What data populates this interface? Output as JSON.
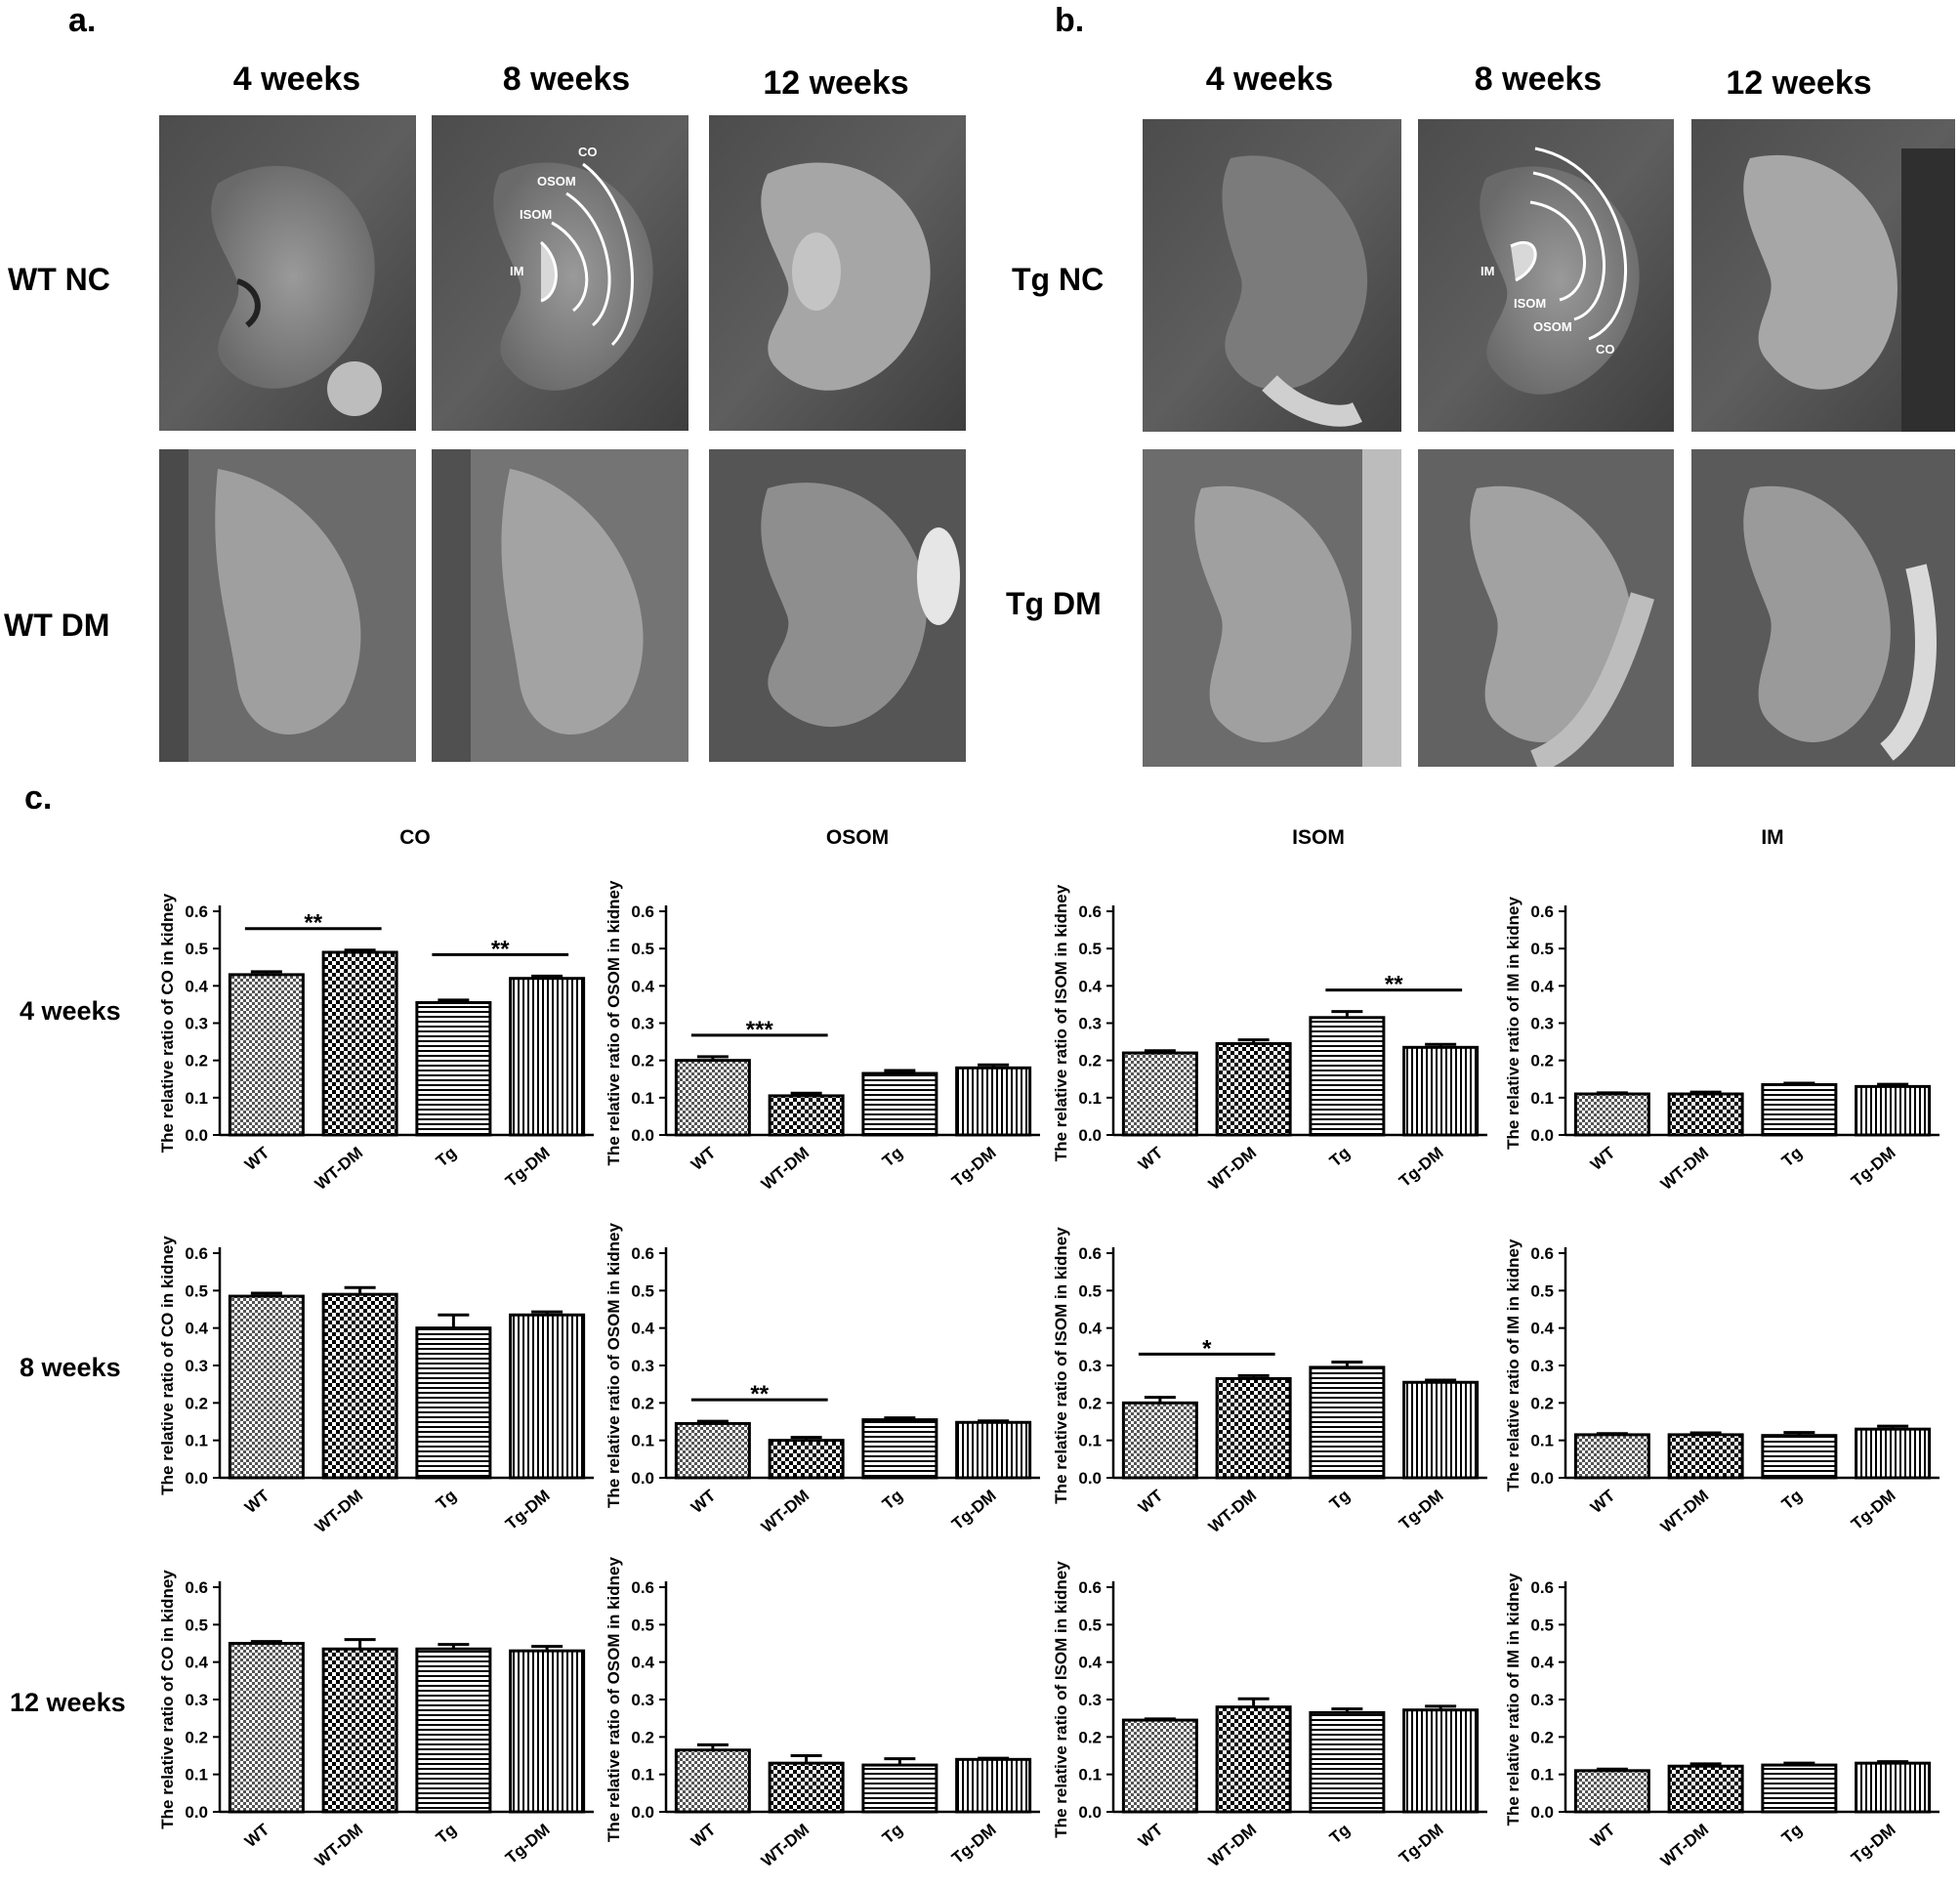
{
  "panel_a": {
    "letter": "a.",
    "columns": [
      "4 weeks",
      "8 weeks",
      "12 weeks"
    ],
    "rows": [
      "WT NC",
      "WT DM"
    ],
    "annotations": [
      "CO",
      "OSOM",
      "ISOM",
      "IM"
    ]
  },
  "panel_b": {
    "letter": "b.",
    "columns": [
      "4 weeks",
      "8 weeks",
      "12 weeks"
    ],
    "rows": [
      "Tg NC",
      "Tg DM"
    ],
    "annotations": [
      "IM",
      "ISOM",
      "OSOM",
      "CO"
    ]
  },
  "panel_c": {
    "letter": "c.",
    "column_titles": [
      "CO",
      "OSOM",
      "ISOM",
      "IM"
    ],
    "row_labels": [
      "4 weeks",
      "8 weeks",
      "12 weeks"
    ],
    "ylabels": [
      "The relative ratio of CO in kidney",
      "The relative ratio of OSOM in kidney",
      "The relative ratio of ISOM in kidney",
      "The relative ratio of IM in kidney"
    ]
  },
  "chart_data": [
    {
      "type": "bar",
      "title": "CO",
      "row": "4 weeks",
      "categories": [
        "WT",
        "WT-DM",
        "Tg",
        "Tg-DM"
      ],
      "values": [
        0.43,
        0.49,
        0.355,
        0.42
      ],
      "errors": [
        0.008,
        0.006,
        0.007,
        0.006
      ],
      "ylabel": "The relative ratio of CO in kidney",
      "ylim": [
        0,
        0.6
      ],
      "significance": [
        {
          "from": 0,
          "to": 1,
          "label": "**"
        },
        {
          "from": 2,
          "to": 3,
          "label": "**"
        }
      ]
    },
    {
      "type": "bar",
      "title": "OSOM",
      "row": "4 weeks",
      "categories": [
        "WT",
        "WT-DM",
        "Tg",
        "Tg-DM"
      ],
      "values": [
        0.2,
        0.105,
        0.165,
        0.18
      ],
      "errors": [
        0.01,
        0.007,
        0.008,
        0.008
      ],
      "ylabel": "The relative ratio of OSOM in kidney",
      "ylim": [
        0,
        0.6
      ],
      "significance": [
        {
          "from": 0,
          "to": 1,
          "label": "***"
        }
      ]
    },
    {
      "type": "bar",
      "title": "ISOM",
      "row": "4 weeks",
      "categories": [
        "WT",
        "WT-DM",
        "Tg",
        "Tg-DM"
      ],
      "values": [
        0.22,
        0.245,
        0.315,
        0.235
      ],
      "errors": [
        0.006,
        0.01,
        0.016,
        0.008
      ],
      "ylabel": "The relative ratio of ISOM in kidney",
      "ylim": [
        0,
        0.6
      ],
      "significance": [
        {
          "from": 2,
          "to": 3,
          "label": "**"
        }
      ]
    },
    {
      "type": "bar",
      "title": "IM",
      "row": "4 weeks",
      "categories": [
        "WT",
        "WT-DM",
        "Tg",
        "Tg-DM"
      ],
      "values": [
        0.11,
        0.11,
        0.135,
        0.13
      ],
      "errors": [
        0.003,
        0.005,
        0.004,
        0.006
      ],
      "ylabel": "The relative ratio of IM in kidney",
      "ylim": [
        0,
        0.6
      ],
      "significance": []
    },
    {
      "type": "bar",
      "title": "",
      "row": "8 weeks",
      "categories": [
        "WT",
        "WT-DM",
        "Tg",
        "Tg-DM"
      ],
      "values": [
        0.485,
        0.49,
        0.4,
        0.435
      ],
      "errors": [
        0.008,
        0.018,
        0.035,
        0.008
      ],
      "ylabel": "The relative ratio of CO in kidney",
      "ylim": [
        0,
        0.6
      ],
      "significance": []
    },
    {
      "type": "bar",
      "title": "",
      "row": "8 weeks",
      "categories": [
        "WT",
        "WT-DM",
        "Tg",
        "Tg-DM"
      ],
      "values": [
        0.145,
        0.1,
        0.155,
        0.148
      ],
      "errors": [
        0.006,
        0.008,
        0.005,
        0.004
      ],
      "ylabel": "The relative ratio of OSOM in kidney",
      "ylim": [
        0,
        0.6
      ],
      "significance": [
        {
          "from": 0,
          "to": 1,
          "label": "**"
        }
      ]
    },
    {
      "type": "bar",
      "title": "",
      "row": "8 weeks",
      "categories": [
        "WT",
        "WT-DM",
        "Tg",
        "Tg-DM"
      ],
      "values": [
        0.2,
        0.265,
        0.295,
        0.255
      ],
      "errors": [
        0.015,
        0.008,
        0.014,
        0.006
      ],
      "ylabel": "The relative ratio of ISOM in kidney",
      "ylim": [
        0,
        0.6
      ],
      "significance": [
        {
          "from": 0,
          "to": 1,
          "label": "*"
        }
      ]
    },
    {
      "type": "bar",
      "title": "",
      "row": "8 weeks",
      "categories": [
        "WT",
        "WT-DM",
        "Tg",
        "Tg-DM"
      ],
      "values": [
        0.115,
        0.115,
        0.113,
        0.13
      ],
      "errors": [
        0.003,
        0.005,
        0.008,
        0.008
      ],
      "ylabel": "The relative ratio of IM in kidney",
      "ylim": [
        0,
        0.6
      ],
      "significance": []
    },
    {
      "type": "bar",
      "title": "",
      "row": "12 weeks",
      "categories": [
        "WT",
        "WT-DM",
        "Tg",
        "Tg-DM"
      ],
      "values": [
        0.45,
        0.435,
        0.435,
        0.43
      ],
      "errors": [
        0.005,
        0.025,
        0.012,
        0.012
      ],
      "ylabel": "The relative ratio of CO in kidney",
      "ylim": [
        0,
        0.6
      ],
      "significance": []
    },
    {
      "type": "bar",
      "title": "",
      "row": "12 weeks",
      "categories": [
        "WT",
        "WT-DM",
        "Tg",
        "Tg-DM"
      ],
      "values": [
        0.165,
        0.13,
        0.125,
        0.14
      ],
      "errors": [
        0.014,
        0.02,
        0.017,
        0.003
      ],
      "ylabel": "The relative ratio of OSOM in kidney",
      "ylim": [
        0,
        0.6
      ],
      "significance": []
    },
    {
      "type": "bar",
      "title": "",
      "row": "12 weeks",
      "categories": [
        "WT",
        "WT-DM",
        "Tg",
        "Tg-DM"
      ],
      "values": [
        0.245,
        0.28,
        0.265,
        0.272
      ],
      "errors": [
        0.003,
        0.022,
        0.01,
        0.01
      ],
      "ylabel": "The relative ratio of ISOM in kidney",
      "ylim": [
        0,
        0.6
      ],
      "significance": []
    },
    {
      "type": "bar",
      "title": "",
      "row": "12 weeks",
      "categories": [
        "WT",
        "WT-DM",
        "Tg",
        "Tg-DM"
      ],
      "values": [
        0.11,
        0.122,
        0.125,
        0.13
      ],
      "errors": [
        0.004,
        0.006,
        0.005,
        0.004
      ],
      "ylabel": "The relative ratio of IM in kidney",
      "ylim": [
        0,
        0.6
      ],
      "significance": []
    }
  ]
}
